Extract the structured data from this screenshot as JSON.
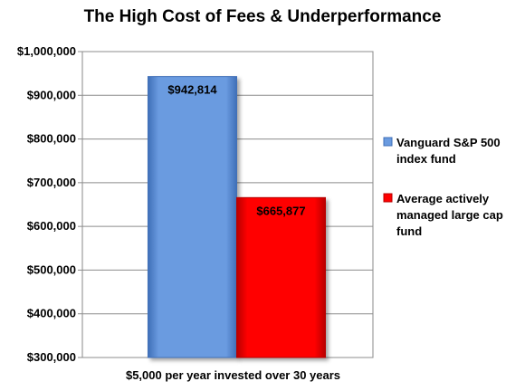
{
  "chart_data": {
    "type": "bar",
    "title": "The High Cost of Fees & Underperformance",
    "categories": [
      "$5,000 per year invested over 30 years"
    ],
    "series": [
      {
        "name": "Vanguard S&P 500 index fund",
        "name_lines": [
          "Vanguard S&P 500",
          "index fund"
        ],
        "values": [
          942814
        ],
        "label": "$942,814",
        "color": "#6A9BE0",
        "color_dark": "#3F6FB8"
      },
      {
        "name": "Average actively managed large cap fund",
        "name_lines": [
          "Average actively",
          "managed large cap",
          "fund"
        ],
        "values": [
          665877
        ],
        "label": "$665,877",
        "color": "#FF0000",
        "color_dark": "#B80000"
      }
    ],
    "ylim": [
      300000,
      1000000
    ],
    "yticks": [
      300000,
      400000,
      500000,
      600000,
      700000,
      800000,
      900000,
      1000000
    ],
    "ytick_labels": [
      "$300,000",
      "$400,000",
      "$500,000",
      "$600,000",
      "$700,000",
      "$800,000",
      "$900,000",
      "$1,000,000"
    ],
    "xlabel": "",
    "ylabel": "",
    "grid": true,
    "legend_position": "right"
  }
}
